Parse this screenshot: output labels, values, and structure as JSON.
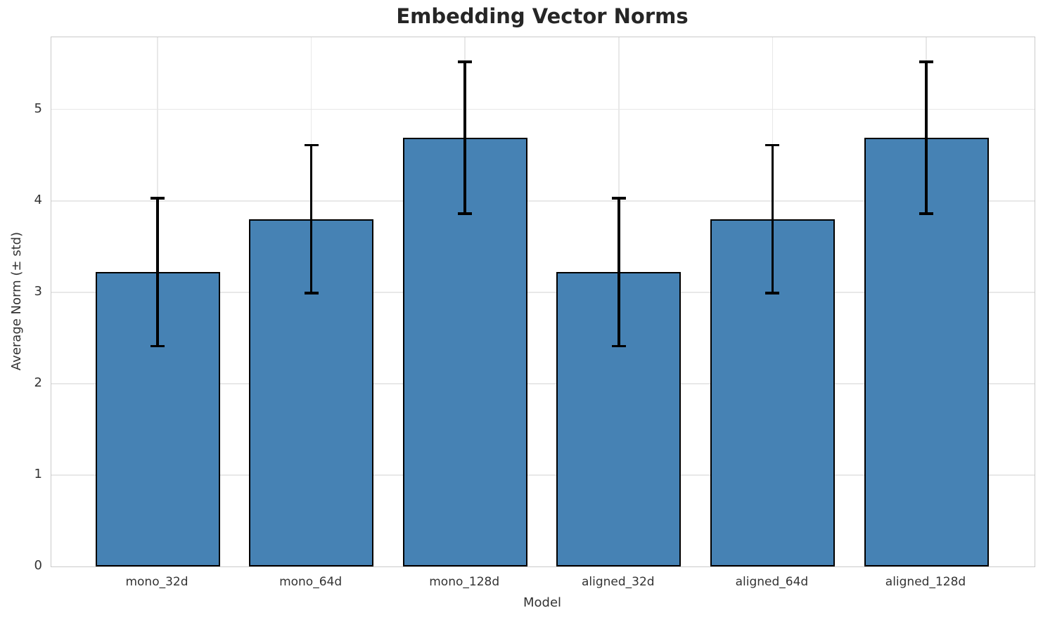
{
  "chart_data": {
    "type": "bar",
    "title": "Embedding Vector Norms",
    "xlabel": "Model",
    "ylabel": "Average Norm (± std)",
    "categories": [
      "mono_32d",
      "mono_64d",
      "mono_128d",
      "aligned_32d",
      "aligned_64d",
      "aligned_128d"
    ],
    "values": [
      3.22,
      3.8,
      4.69,
      3.22,
      3.8,
      4.69
    ],
    "errors": [
      0.81,
      0.81,
      0.83,
      0.81,
      0.81,
      0.83
    ],
    "yticks": [
      "0",
      "1",
      "2",
      "3",
      "4",
      "5"
    ],
    "ylim": [
      0,
      5.79
    ],
    "grid": true,
    "legend": "none",
    "colors": {
      "bar_fill": "#4682b4",
      "bar_edge": "#000000",
      "error_bar": "#000000",
      "grid_line": "#e8e8e8",
      "spine": "#cacaca",
      "title_text": "#262626",
      "tick_text": "#333333"
    }
  }
}
